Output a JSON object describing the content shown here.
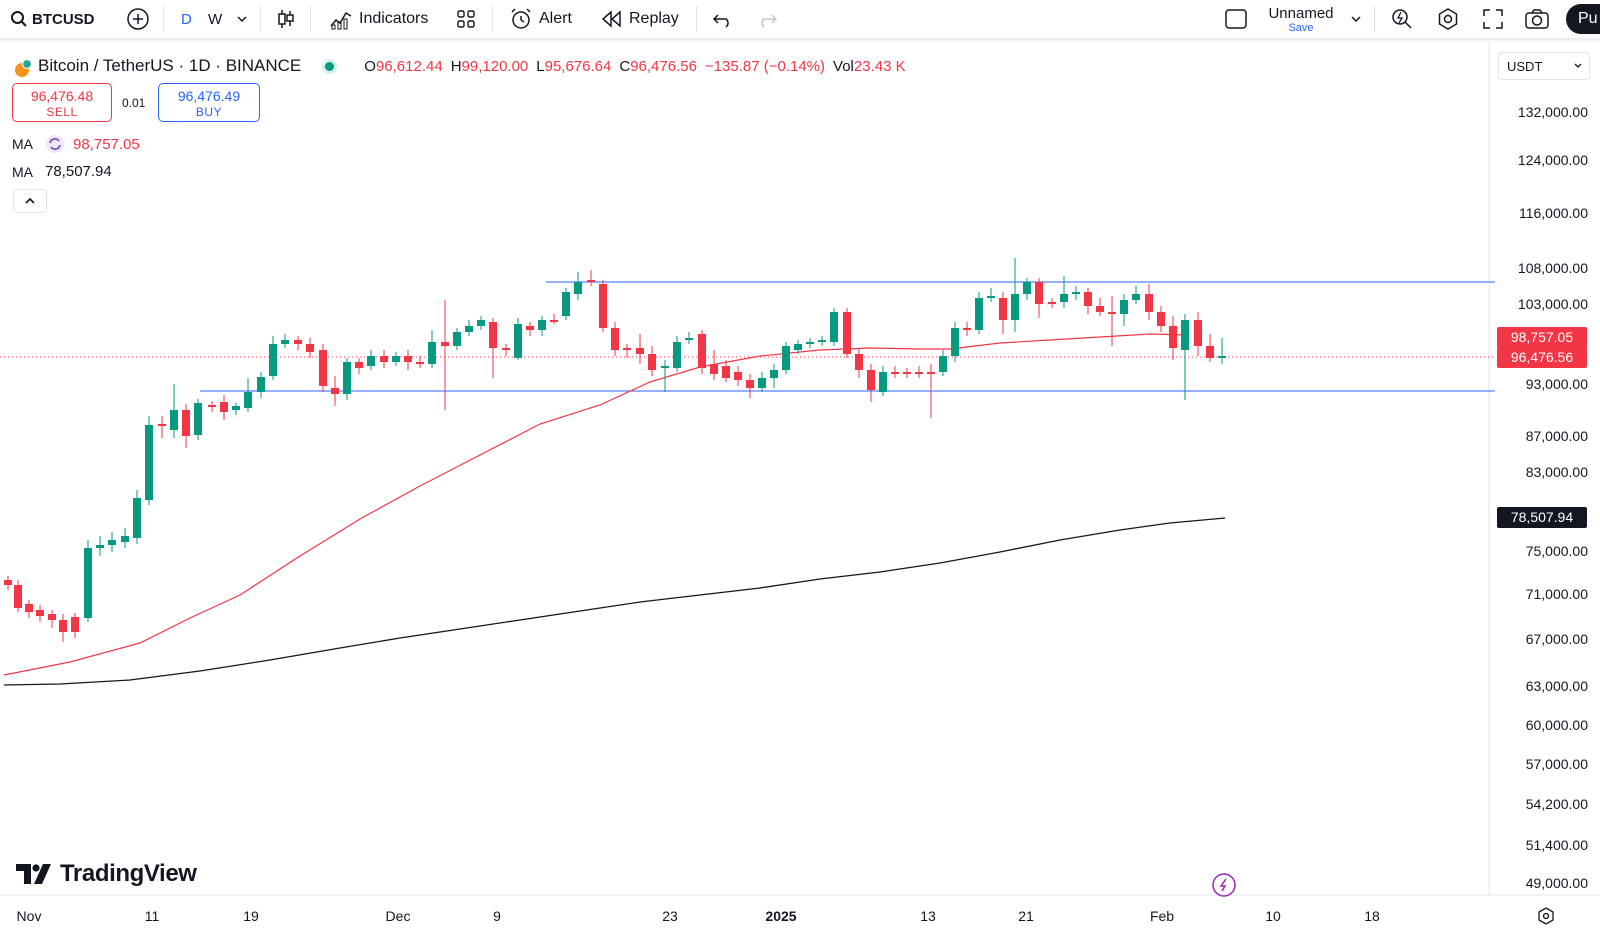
{
  "toolbar": {
    "symbol": "BTCUSD",
    "intervals": [
      "D",
      "W"
    ],
    "indicators_label": "Indicators",
    "alert_label": "Alert",
    "replay_label": "Replay",
    "layout_name": "Unnamed",
    "layout_save": "Save",
    "publish_label": "Pu"
  },
  "legend": {
    "title": "Bitcoin / TetherUS · 1D · BINANCE",
    "o_label": "O",
    "o_value": "96,612.44",
    "h_label": "H",
    "h_value": "99,120.00",
    "l_label": "L",
    "l_value": "95,676.64",
    "c_label": "C",
    "c_value": "96,476.56",
    "change": "−135.87 (−0.14%)",
    "vol_label": "Vol",
    "vol_value": "23.43 K",
    "sell_price": "96,476.48",
    "sell_label": "SELL",
    "spread": "0.01",
    "buy_price": "96,476.49",
    "buy_label": "BUY",
    "ma1_label": "MA",
    "ma1_value": "98,757.05",
    "ma2_label": "MA",
    "ma2_value": "78,507.94"
  },
  "price_axis": {
    "currency": "USDT",
    "labels": [
      "132,000.00",
      "124,000.00",
      "116,000.00",
      "108,000.00",
      "103,000.00",
      "93,000.00",
      "87,000.00",
      "83,000.00",
      "75,000.00",
      "71,000.00",
      "67,000.00",
      "63,000.00",
      "60,000.00",
      "57,000.00",
      "54,200.00",
      "51,400.00",
      "49,000.00"
    ],
    "ma1_tag": "98,757.05",
    "last_price_tag": "96,476.56",
    "ma2_tag": "78,507.94"
  },
  "time_axis": {
    "labels": [
      "Nov",
      "11",
      "19",
      "Dec",
      "9",
      "23",
      "2025",
      "13",
      "21",
      "Feb",
      "10",
      "18"
    ]
  },
  "colors": {
    "up": "#089981",
    "down": "#f23645",
    "ma_fast": "#f23645",
    "ma_slow": "#131722",
    "level": "#2962ff"
  },
  "brand": {
    "name": "TradingView"
  }
}
